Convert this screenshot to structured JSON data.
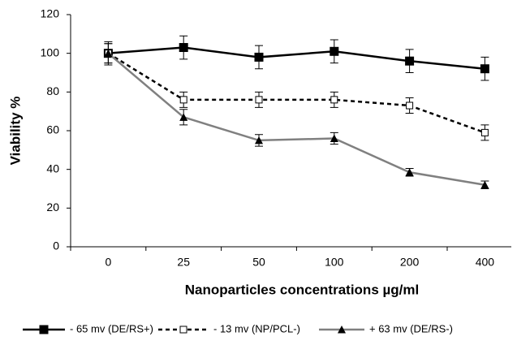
{
  "chart_data": {
    "type": "line",
    "xlabel": "Nanoparticles concentrations  µg/ml",
    "ylabel": "Viability %",
    "categories": [
      "0",
      "25",
      "50",
      "100",
      "200",
      "400"
    ],
    "ylim": [
      0,
      120
    ],
    "yticks": [
      0,
      20,
      40,
      60,
      80,
      100,
      120
    ],
    "series": [
      {
        "name": "- 65 mv (DE/RS+)",
        "color": "#000000",
        "marker": "square",
        "dash": false,
        "values": [
          100,
          103,
          98,
          101,
          96,
          92
        ],
        "errors": [
          6,
          6,
          6,
          6,
          6,
          6
        ]
      },
      {
        "name": "- 13 mv (NP/PCL-)",
        "color": "#000000",
        "marker": "square-open",
        "dash": true,
        "values": [
          100,
          76,
          76,
          76,
          73,
          59
        ],
        "errors": [
          5,
          4,
          4,
          4,
          4,
          4
        ]
      },
      {
        "name": "+ 63 mv (DE/RS-)",
        "color": "#808080",
        "marker": "triangle",
        "dash": false,
        "values": [
          100,
          67,
          55,
          56,
          38.5,
          32
        ],
        "errors": [
          5,
          4,
          3,
          3,
          2,
          2
        ]
      }
    ]
  }
}
